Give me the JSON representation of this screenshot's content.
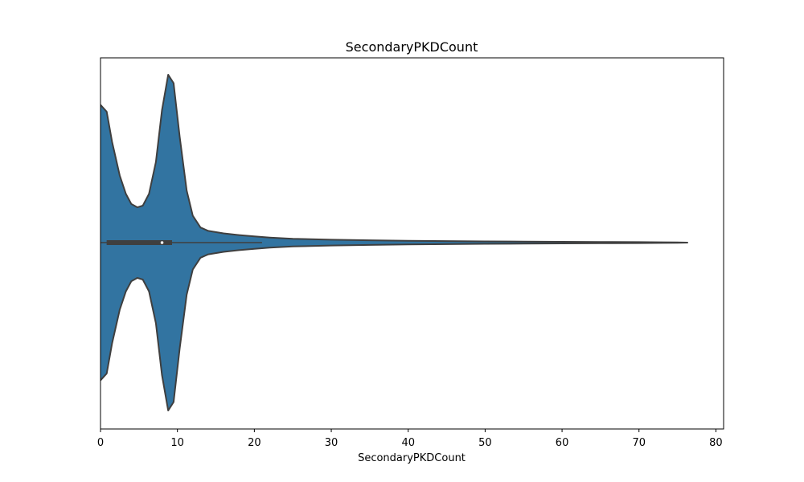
{
  "chart_data": {
    "type": "violin",
    "title": "SecondaryPKDCount",
    "xlabel": "SecondaryPKDCount",
    "ylabel": "",
    "xlim": [
      0,
      81
    ],
    "xticks": [
      0,
      10,
      20,
      30,
      40,
      50,
      60,
      70,
      80
    ],
    "grid": false,
    "orientation": "horizontal",
    "colors": {
      "fill": "#3274a1",
      "edge": "#3f3f3f",
      "box": "#3f3f3f",
      "median": "#ffffff"
    },
    "density_curve": {
      "x": [
        -0.3,
        0,
        0.8,
        1.5,
        2.5,
        3.3,
        4.0,
        4.8,
        5.5,
        6.3,
        7.2,
        8.0,
        8.8,
        9.5,
        10.3,
        11.2,
        12.0,
        13.0,
        14.0,
        16.0,
        18.0,
        20.0,
        22.0,
        25.0,
        30.0,
        35.0,
        40.0,
        45.0,
        50.0,
        55.0,
        60.0,
        65.0,
        70.0,
        73.0,
        75.0,
        76.3
      ],
      "density": [
        0.82,
        0.82,
        0.78,
        0.6,
        0.4,
        0.29,
        0.23,
        0.21,
        0.22,
        0.29,
        0.48,
        0.79,
        1.0,
        0.95,
        0.63,
        0.31,
        0.16,
        0.09,
        0.07,
        0.055,
        0.045,
        0.037,
        0.03,
        0.023,
        0.017,
        0.014,
        0.011,
        0.009,
        0.007,
        0.006,
        0.005,
        0.004,
        0.003,
        0.002,
        0.001,
        0.0
      ]
    },
    "box": {
      "q1": 0.8,
      "median": 8.0,
      "q3": 9.3,
      "whisker_low": -0.3,
      "whisker_high": 21.0
    }
  }
}
